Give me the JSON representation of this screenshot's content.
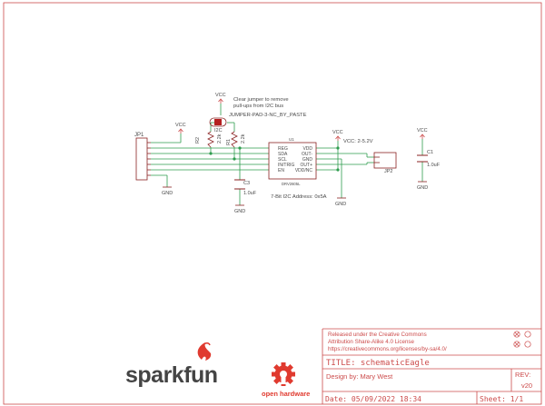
{
  "colors": {
    "frame": "#cc4b4b",
    "wire": "#2e9c4e",
    "part": "#8a2222",
    "text": "#4a4a4a",
    "logo_red": "#e03a2f",
    "logo_dark": "#444444"
  },
  "schematic": {
    "jumper": {
      "note_line1": "Clear jumper to remove",
      "note_line2": "pull-ups from I2C bus",
      "part_value": "JUMPER-PAD-3-NC_BY_PASTE",
      "ref": "I2C",
      "vcc_label": "VCC"
    },
    "jp1": {
      "ref": "JP1",
      "vcc_label": "VCC",
      "gnd_label": "GND"
    },
    "r1": {
      "ref": "R1",
      "value": "2.2k"
    },
    "r2": {
      "ref": "R2",
      "value": "2.2k"
    },
    "c3": {
      "ref": "C3",
      "value": "1.0uF",
      "gnd_label": "GND"
    },
    "u1": {
      "ref": "U1",
      "part": "DRV2605L",
      "pins_left": [
        "REG",
        "SDA",
        "SCL",
        "IN/TRIG",
        "EN"
      ],
      "pins_right": [
        "VDD",
        "OUT-",
        "GND",
        "OUT+",
        "VDD/NC"
      ],
      "address_note": "7-Bit I2C Address: 0x5A",
      "gnd_label": "GND"
    },
    "supply": {
      "vcc_label": "VCC",
      "range_note": "VCC: 2-5.2V"
    },
    "jp2": {
      "ref": "JP2"
    },
    "c1": {
      "ref": "C1",
      "value": "1.0uF",
      "vcc_label": "VCC",
      "gnd_label": "GND"
    }
  },
  "title_block": {
    "license_line1": "Released under the Creative Commons",
    "license_line2": "Attribution Share-Alike 4.0 License",
    "license_line3": " https://creativecommons.org/licenses/by-sa/4.0/",
    "title": "TITLE: schematicEagle",
    "designer": "Design by: Mary West",
    "rev_label": "REV:",
    "rev_value": "v20",
    "date": "Date: 05/09/2022 18:34",
    "sheet": "Sheet: 1/1"
  },
  "logos": {
    "sparkfun": "sparkfun",
    "open_hardware": "open hardware"
  }
}
